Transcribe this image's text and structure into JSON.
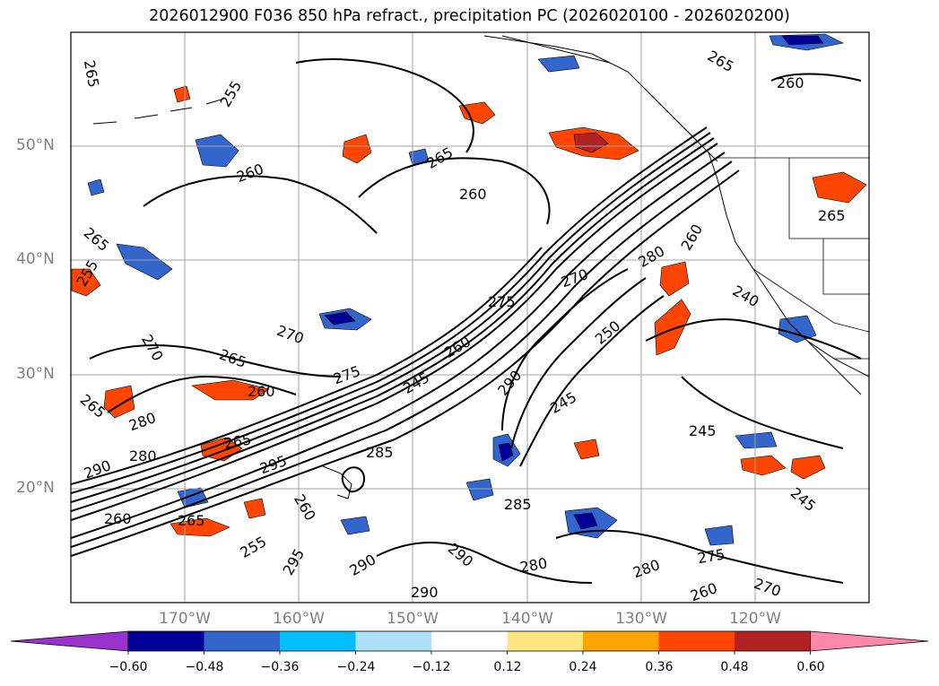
{
  "title": "2026012900 F036 850 hPa refract., precipitation PC (2026020100 - 2026020200)",
  "lat_labels": [
    "50°N",
    "40°N",
    "30°N",
    "20°N"
  ],
  "lon_labels": [
    "170°W",
    "160°W",
    "150°W",
    "140°W",
    "130°W",
    "120°W"
  ],
  "colorbar": {
    "tick_labels": [
      "−0.60",
      "−0.48",
      "−0.36",
      "−0.24",
      "−0.12",
      "0.12",
      "0.24",
      "0.36",
      "0.48",
      "0.60"
    ],
    "colors": [
      "#9933cc",
      "#000099",
      "#3366cc",
      "#00bfff",
      "#aee0f8",
      "#ffffff",
      "#ffe680",
      "#ffa500",
      "#ff4500",
      "#b22222",
      "#ff88aa"
    ]
  },
  "contour_labels": [
    "265",
    "255",
    "260",
    "260",
    "260",
    "265",
    "265",
    "265",
    "275",
    "270",
    "270",
    "270",
    "265",
    "260",
    "275",
    "245",
    "260",
    "280",
    "290",
    "250",
    "285",
    "280",
    "295",
    "265",
    "255",
    "260",
    "265",
    "290",
    "280",
    "295",
    "290",
    "285",
    "260",
    "280",
    "275",
    "290",
    "290",
    "245",
    "245",
    "240",
    "260",
    "280",
    "245",
    "265",
    "255",
    "265",
    "260",
    "270"
  ],
  "colors": {
    "ocean": "#ffffff",
    "contour": "#000000",
    "grid": "#a0a0a0",
    "coast": "#000000"
  }
}
